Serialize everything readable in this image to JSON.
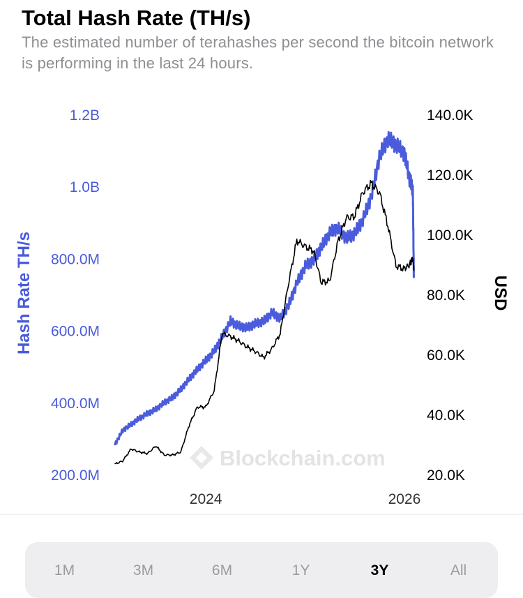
{
  "header": {
    "title": "Total Hash Rate (TH/s)",
    "subtitle": "The estimated number of terahashes per second the bitcoin network is performing in the last 24 hours."
  },
  "watermark": {
    "text": "Blockchain.com",
    "icon": "blockchain-logo-icon"
  },
  "range_selector": {
    "options": [
      "1M",
      "3M",
      "6M",
      "1Y",
      "3Y",
      "All"
    ],
    "selected": "3Y"
  },
  "colors": {
    "hash_rate": "#4a5bdb",
    "price": "#000000",
    "muted": "#9a9aa0"
  },
  "chart_data": {
    "type": "line",
    "title": "Total Hash Rate (TH/s)",
    "x_tick_labels": [
      "2024",
      "2026"
    ],
    "x_range": [
      "2023-02",
      "2026-02"
    ],
    "left_axis": {
      "label": "Hash Rate TH/s",
      "range": [
        200000000,
        1200000000
      ],
      "ticks": [
        "200.0M",
        "400.0M",
        "600.0M",
        "800.0M",
        "1.0B",
        "1.2B"
      ]
    },
    "right_axis": {
      "label": "USD",
      "range": [
        20000,
        140000
      ],
      "ticks": [
        "20.0K",
        "40.0K",
        "60.0K",
        "80.0K",
        "100.0K",
        "120.0K",
        "140.0K"
      ]
    },
    "grid": false,
    "series": [
      {
        "axis": "left",
        "color": "#4a5bdb",
        "x": [
          "2023-02-01",
          "2023-03-01",
          "2023-04-01",
          "2023-05-01",
          "2023-06-01",
          "2023-07-01",
          "2023-08-01",
          "2023-09-01",
          "2023-10-01",
          "2023-11-01",
          "2023-12-01",
          "2024-01-01",
          "2024-02-01",
          "2024-03-01",
          "2024-04-01",
          "2024-05-01",
          "2024-06-01",
          "2024-07-01",
          "2024-08-01",
          "2024-09-01",
          "2024-10-01",
          "2024-11-01",
          "2024-12-01",
          "2025-01-01",
          "2025-02-01",
          "2025-03-01",
          "2025-04-01",
          "2025-05-01",
          "2025-06-01",
          "2025-07-01",
          "2025-08-01",
          "2025-09-01",
          "2025-10-01",
          "2025-11-01",
          "2025-12-01",
          "2026-01-01",
          "2026-01-20",
          "2026-02-01",
          "2026-02-05"
        ],
        "values": [
          280000000,
          320000000,
          340000000,
          360000000,
          375000000,
          385000000,
          400000000,
          410000000,
          430000000,
          460000000,
          490000000,
          520000000,
          550000000,
          590000000,
          630000000,
          610000000,
          600000000,
          610000000,
          620000000,
          650000000,
          640000000,
          680000000,
          740000000,
          780000000,
          790000000,
          820000000,
          860000000,
          880000000,
          860000000,
          880000000,
          920000000,
          980000000,
          1080000000,
          1120000000,
          1100000000,
          1080000000,
          1020000000,
          1000000000,
          750000000
        ]
      },
      {
        "axis": "right",
        "color": "#000000",
        "x": [
          "2023-02-01",
          "2023-03-01",
          "2023-04-01",
          "2023-05-01",
          "2023-06-01",
          "2023-07-01",
          "2023-08-01",
          "2023-09-01",
          "2023-10-01",
          "2023-11-01",
          "2023-12-01",
          "2024-01-01",
          "2024-02-01",
          "2024-03-01",
          "2024-04-01",
          "2024-05-01",
          "2024-06-01",
          "2024-07-01",
          "2024-08-01",
          "2024-09-01",
          "2024-10-01",
          "2024-11-01",
          "2024-12-01",
          "2025-01-01",
          "2025-02-01",
          "2025-03-01",
          "2025-04-01",
          "2025-05-01",
          "2025-06-01",
          "2025-07-01",
          "2025-08-01",
          "2025-09-01",
          "2025-10-01",
          "2025-11-01",
          "2025-12-01",
          "2026-01-01",
          "2026-01-20",
          "2026-02-01",
          "2026-02-05"
        ],
        "values": [
          23500,
          24500,
          28500,
          27500,
          27000,
          29500,
          26500,
          26500,
          27500,
          36500,
          42500,
          42500,
          48000,
          67000,
          66000,
          64500,
          62500,
          61000,
          59000,
          62000,
          67000,
          84000,
          98000,
          96000,
          94500,
          84000,
          84500,
          97500,
          105500,
          106000,
          114000,
          117000,
          114000,
          103000,
          89500,
          88500,
          90000,
          92000,
          88000
        ]
      }
    ]
  }
}
